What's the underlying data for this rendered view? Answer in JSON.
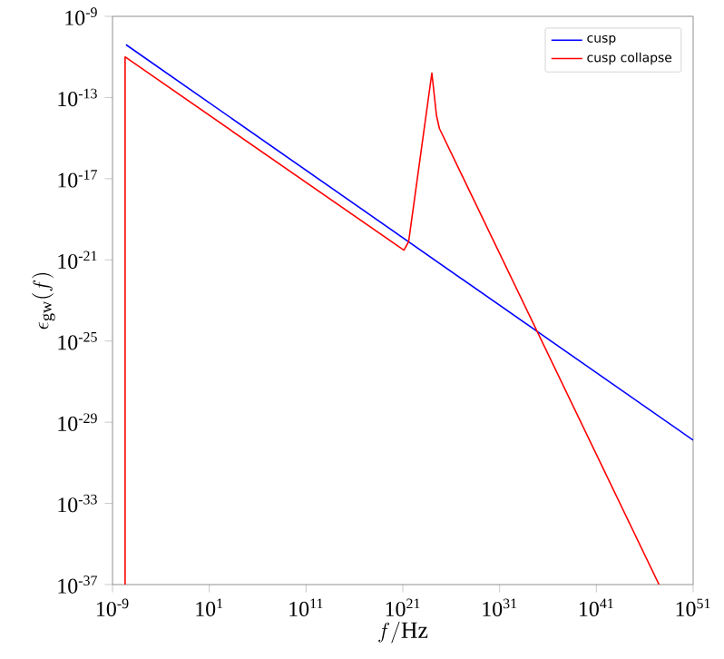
{
  "chart_data": {
    "type": "line",
    "xlabel": "f/\\mathrm{Hz}",
    "ylabel": "\\epsilon_{\\rm gw}(f)",
    "log": "xy",
    "grid": false,
    "legend": "top right",
    "marker": "none",
    "line_style": "solid",
    "xlim": [
      1e-09,
      1e+51
    ],
    "ylim": [
      1e-37,
      1e-09
    ],
    "xticks": [
      {
        "value": 1e-09,
        "label": "10$^{-9}$"
      },
      {
        "value": 10.0,
        "label": "10$^{1}$"
      },
      {
        "value": 100000000000.0,
        "label": "10$^{11}$"
      },
      {
        "value": 1e+21,
        "label": "10$^{21}$"
      },
      {
        "value": 1e+31,
        "label": "10$^{31}$"
      },
      {
        "value": 1e+41,
        "label": "10$^{41}$"
      },
      {
        "value": 1e+51,
        "label": "10$^{51}$"
      }
    ],
    "yticks": [
      {
        "value": 1e-37,
        "label": "10$^{-37}$"
      },
      {
        "value": 1e-33,
        "label": "10$^{-33}$"
      },
      {
        "value": 1e-29,
        "label": "10$^{-29}$"
      },
      {
        "value": 1e-25,
        "label": "10$^{-25}$"
      },
      {
        "value": 1e-21,
        "label": "10$^{-21}$"
      },
      {
        "value": 1e-17,
        "label": "10$^{-17}$"
      },
      {
        "value": 1e-13,
        "label": "10$^{-13}$"
      },
      {
        "value": 1e-09,
        "label": "10$^{-9}$"
      }
    ],
    "series": [
      {
        "name": "cusp",
        "color": "#0000ff",
        "x": [
          2.5e-08,
          1e+51
        ],
        "values": [
          4e-11,
          1.3e-30
        ]
      },
      {
        "name": "cusp collapse",
        "color": "#ff0000",
        "x": [
          2e-08,
          2e-08,
          1.3e+21,
          4e+21,
          1e+24,
          3e+24,
          6e+24,
          3e+47
        ],
        "values": [
          1e-37,
          1e-11,
          3e-21,
          8e-21,
          1.6e-12,
          1.3e-14,
          3e-15,
          1e-37
        ]
      }
    ]
  }
}
